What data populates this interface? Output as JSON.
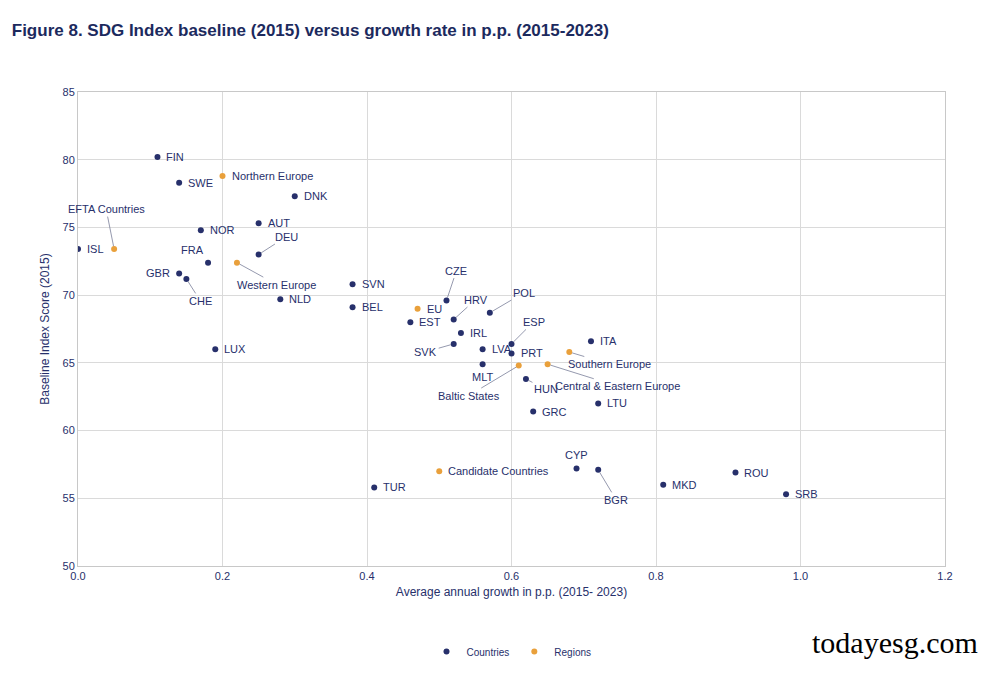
{
  "chart_data": {
    "type": "scatter",
    "title": "Figure 8. SDG Index baseline (2015) versus growth rate in p.p. (2015-2023)",
    "x_label": "Average annual growth in p.p. (2015- 2023)",
    "y_label": "Baseline Index Score (2015)",
    "xlim": [
      0,
      1.2
    ],
    "xticks": [
      {
        "value": 0,
        "label": "0.0"
      },
      0.2,
      0.4,
      0.6,
      0.8,
      {
        "value": 1,
        "label": "1.0"
      },
      1.2
    ],
    "ylim": [
      50,
      85
    ],
    "yticks": [
      50,
      55,
      60,
      65,
      70,
      75,
      80,
      85
    ],
    "grid": true,
    "legend": "bottom",
    "annotations": [
      "todayesg.com"
    ],
    "series": [
      {
        "name": "Countries",
        "color": "#27306b",
        "marker": "circle",
        "labels": [
          "FIN",
          "SWE",
          "DNK",
          "NOR",
          "AUT",
          "ISL",
          "FRA",
          "DEU",
          "GBR",
          "CHE",
          "NLD",
          "SVN",
          "BEL",
          "LUX",
          "CZE",
          "EST",
          "HRV",
          "POL",
          "IRL",
          "ESP",
          "SVK",
          "LVA",
          "PRT",
          "ITA",
          "MLT",
          "HUN",
          "LTU",
          "GRC",
          "CYP",
          "BGR",
          "MKD",
          "ROU",
          "SRB",
          "TUR"
        ],
        "x": [
          0.11,
          0.14,
          0.3,
          0.17,
          0.25,
          0.0,
          0.18,
          0.25,
          0.14,
          0.15,
          0.28,
          0.38,
          0.38,
          0.19,
          0.51,
          0.46,
          0.52,
          0.57,
          0.53,
          0.6,
          0.52,
          0.56,
          0.6,
          0.71,
          0.56,
          0.62,
          0.72,
          0.63,
          0.69,
          0.72,
          0.81,
          0.91,
          0.98,
          0.41
        ],
        "y": [
          80.2,
          78.3,
          77.3,
          74.8,
          75.3,
          73.4,
          72.4,
          73.0,
          71.6,
          71.2,
          69.7,
          70.8,
          69.1,
          66.0,
          69.6,
          68.0,
          68.2,
          68.7,
          67.2,
          66.4,
          66.4,
          66.0,
          65.7,
          66.6,
          64.9,
          63.8,
          62.0,
          61.4,
          57.2,
          57.1,
          56.0,
          56.9,
          55.3,
          55.8
        ]
      },
      {
        "name": "Regions",
        "color": "#e9a03b",
        "marker": "circle",
        "labels": [
          "Northern Europe",
          "EFTA Countries",
          "Western Europe",
          "EU",
          "Southern Europe",
          "Central & Eastern Europe",
          "Baltic States",
          "Candidate Countries"
        ],
        "x": [
          0.2,
          0.05,
          0.22,
          0.47,
          0.68,
          0.65,
          0.61,
          0.5
        ],
        "y": [
          78.8,
          73.4,
          72.4,
          69.0,
          65.8,
          64.9,
          64.8,
          57.0
        ]
      }
    ]
  }
}
